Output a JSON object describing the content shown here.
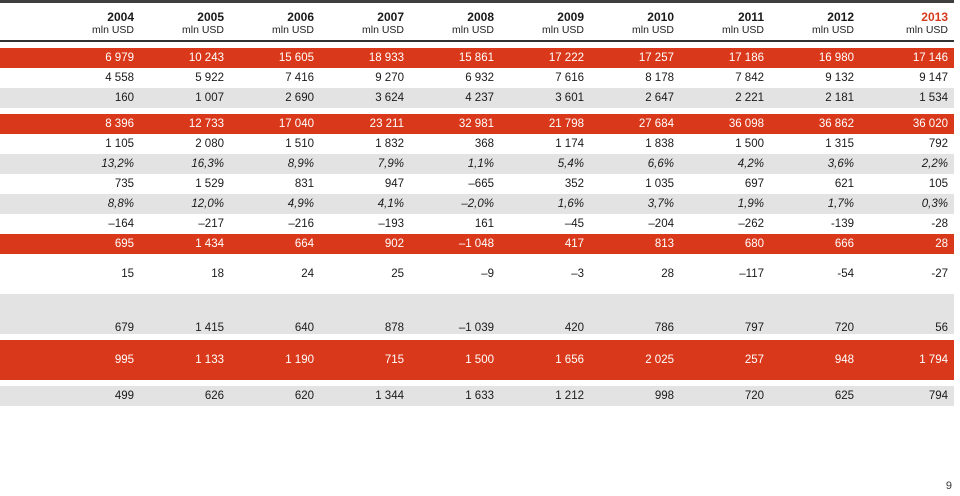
{
  "header": {
    "years": [
      "2004",
      "2005",
      "2006",
      "2007",
      "2008",
      "2009",
      "2010",
      "2011",
      "2012",
      "2013"
    ],
    "unit": "mln USD",
    "highlight_color": "#d53a1f"
  },
  "rows": [
    [
      "6 979",
      "10 243",
      "15 605",
      "18 933",
      "15 861",
      "17 222",
      "17 257",
      "17 186",
      "16 980",
      "17 146"
    ],
    [
      "4 558",
      "5 922",
      "7 416",
      "9 270",
      "6 932",
      "7 616",
      "8 178",
      "7 842",
      "9 132",
      "9 147"
    ],
    [
      "160",
      "1 007",
      "2 690",
      "3 624",
      "4 237",
      "3 601",
      "2 647",
      "2 221",
      "2 181",
      "1 534"
    ],
    [
      "8 396",
      "12 733",
      "17 040",
      "23 211",
      "32 981",
      "21 798",
      "27 684",
      "36 098",
      "36 862",
      "36 020"
    ],
    [
      "1 105",
      "2 080",
      "1 510",
      "1 832",
      "368",
      "1 174",
      "1 838",
      "1 500",
      "1 315",
      "792"
    ],
    [
      "13,2%",
      "16,3%",
      "8,9%",
      "7,9%",
      "1,1%",
      "5,4%",
      "6,6%",
      "4,2%",
      "3,6%",
      "2,2%"
    ],
    [
      "735",
      "1 529",
      "831",
      "947",
      "–665",
      "352",
      "1 035",
      "697",
      "621",
      "105"
    ],
    [
      "8,8%",
      "12,0%",
      "4,9%",
      "4,1%",
      "–2,0%",
      "1,6%",
      "3,7%",
      "1,9%",
      "1,7%",
      "0,3%"
    ],
    [
      "–164",
      "–217",
      "–216",
      "–193",
      "161",
      "–45",
      "–204",
      "–262",
      "-139",
      "-28"
    ],
    [
      "695",
      "1 434",
      "664",
      "902",
      "–1 048",
      "417",
      "813",
      "680",
      "666",
      "28"
    ],
    [
      "15",
      "18",
      "24",
      "25",
      "–9",
      "–3",
      "28",
      "–117",
      "-54",
      "-27"
    ],
    [
      "679",
      "1 415",
      "640",
      "878",
      "–1 039",
      "420",
      "786",
      "797",
      "720",
      "56"
    ],
    [
      "995",
      "1 133",
      "1 190",
      "715",
      "1 500",
      "1 656",
      "2 025",
      "257",
      "948",
      "1 794"
    ],
    [
      "499",
      "626",
      "620",
      "1 344",
      "1 633",
      "1 212",
      "998",
      "720",
      "625",
      "794"
    ]
  ],
  "page_number": "9"
}
